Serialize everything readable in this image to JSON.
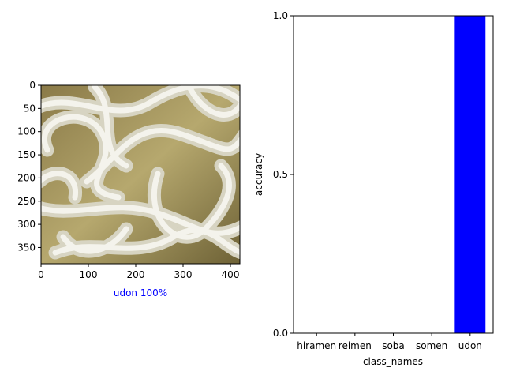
{
  "chart_data": [
    {
      "type": "image",
      "image_subject": "udon noodles",
      "xlim": [
        0,
        420
      ],
      "ylim": [
        385,
        0
      ],
      "x_ticks": [
        0,
        100,
        200,
        300,
        400
      ],
      "y_ticks": [
        0,
        50,
        100,
        150,
        200,
        250,
        300,
        350
      ],
      "xlabel": "udon 100%",
      "xlabel_color": "#0000ff"
    },
    {
      "type": "bar",
      "categories": [
        "hiramen",
        "reimen",
        "soba",
        "somen",
        "udon"
      ],
      "values": [
        0.0,
        0.0,
        0.0,
        0.0,
        1.0
      ],
      "bar_color": "#0000ff",
      "xlabel": "class_names",
      "ylabel": "accuracy",
      "ylim": [
        0,
        1
      ],
      "y_ticks": [
        "0.0",
        "0.5",
        "1.0"
      ],
      "grid": false
    }
  ]
}
